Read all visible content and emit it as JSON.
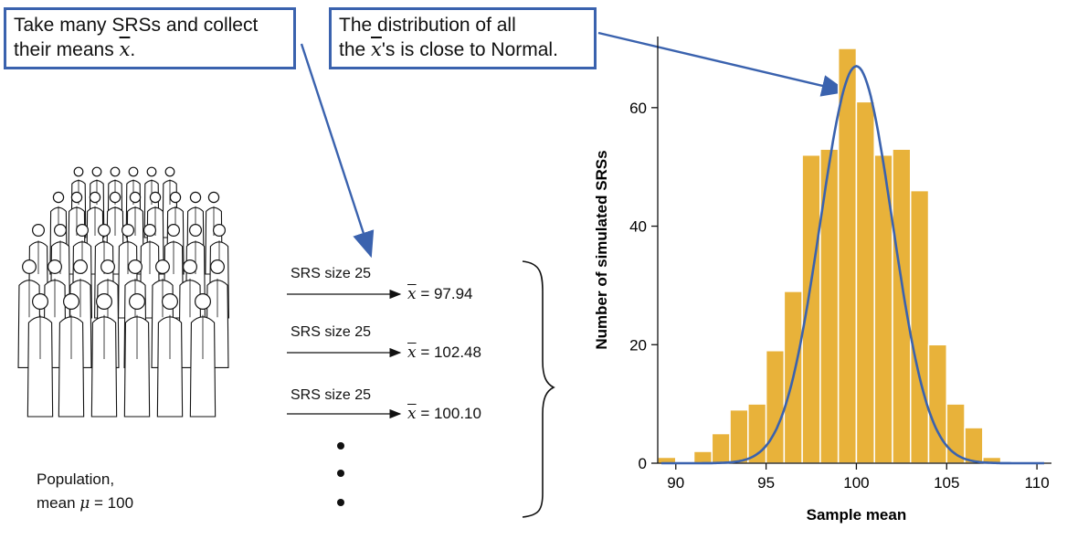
{
  "callouts": {
    "left_line1": "Take many SRSs and collect",
    "left_line2_prefix": "their means ",
    "left_line2_suffix": ".",
    "right_line1": "The distribution of all",
    "right_line2_prefix": "the ",
    "right_line2_suffix": "'s is close to Normal."
  },
  "population": {
    "line1": "Population,",
    "line2_prefix": "mean ",
    "mu": "μ",
    "line2_suffix": " = 100"
  },
  "samples": [
    {
      "label": "SRS size 25",
      "value": "97.94"
    },
    {
      "label": "SRS size 25",
      "value": "102.48"
    },
    {
      "label": "SRS size 25",
      "value": "100.10"
    }
  ],
  "symbols": {
    "xbar": "x",
    "equals": " = "
  },
  "colors": {
    "bar": "#e8b23a",
    "curve": "#3a62ae",
    "callout_border": "#3a62ae"
  },
  "chart_data": {
    "type": "bar",
    "xlabel": "Sample mean",
    "ylabel": "Number of simulated SRSs",
    "xlim": [
      89,
      110.5
    ],
    "ylim": [
      0,
      72
    ],
    "xticks": [
      90,
      95,
      100,
      105,
      110
    ],
    "yticks": [
      0,
      20,
      40,
      60
    ],
    "bin_width": 1,
    "bins": [
      {
        "x": 89.5,
        "count": 1
      },
      {
        "x": 91.5,
        "count": 2
      },
      {
        "x": 92.5,
        "count": 5
      },
      {
        "x": 93.5,
        "count": 9
      },
      {
        "x": 94.5,
        "count": 10
      },
      {
        "x": 95.5,
        "count": 19
      },
      {
        "x": 96.5,
        "count": 29
      },
      {
        "x": 97.5,
        "count": 52
      },
      {
        "x": 98.5,
        "count": 53
      },
      {
        "x": 99.5,
        "count": 70
      },
      {
        "x": 100.5,
        "count": 61
      },
      {
        "x": 101.5,
        "count": 52
      },
      {
        "x": 102.5,
        "count": 53
      },
      {
        "x": 103.5,
        "count": 46
      },
      {
        "x": 104.5,
        "count": 20
      },
      {
        "x": 105.5,
        "count": 10
      },
      {
        "x": 106.5,
        "count": 6
      },
      {
        "x": 107.5,
        "count": 1
      }
    ],
    "normal_curve": {
      "mean": 100,
      "sd": 2,
      "peak": 67
    }
  }
}
